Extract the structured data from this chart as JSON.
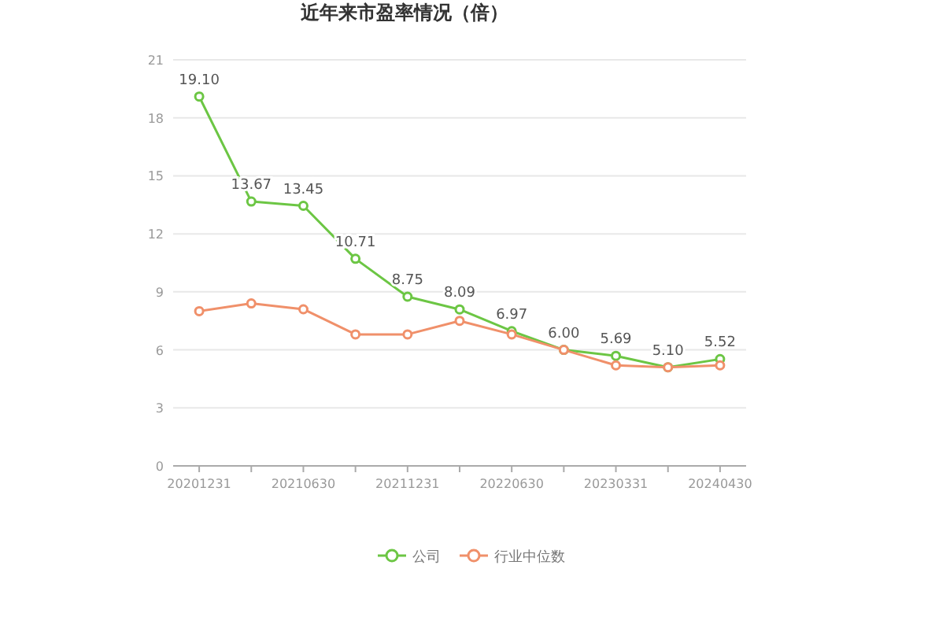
{
  "chart_data": {
    "type": "line",
    "title": "近年来市盈率情况（倍）",
    "categories": [
      "20201231",
      null,
      "20210630",
      null,
      "20211231",
      null,
      "20220630",
      null,
      "20230331",
      null,
      "20240430"
    ],
    "series": [
      {
        "name": "公司",
        "color": "#6cc644",
        "values": [
          19.1,
          13.67,
          13.45,
          10.71,
          8.75,
          8.09,
          6.97,
          6.0,
          5.69,
          5.1,
          5.52
        ],
        "value_labels": [
          "19.10",
          "13.67",
          "13.45",
          "10.71",
          "8.75",
          "8.09",
          "6.97",
          "6.00",
          "5.69",
          "5.10",
          "5.52"
        ]
      },
      {
        "name": "行业中位数",
        "color": "#f0906a",
        "values": [
          8.0,
          8.4,
          8.1,
          6.8,
          6.8,
          7.5,
          6.8,
          6.0,
          5.2,
          5.1,
          5.2
        ]
      }
    ],
    "ylim": [
      0,
      21
    ],
    "yticks": [
      0,
      3,
      6,
      9,
      12,
      15,
      18,
      21
    ],
    "grid": "y",
    "legend": "bottom",
    "marker": "circle",
    "line_style": "solid"
  }
}
